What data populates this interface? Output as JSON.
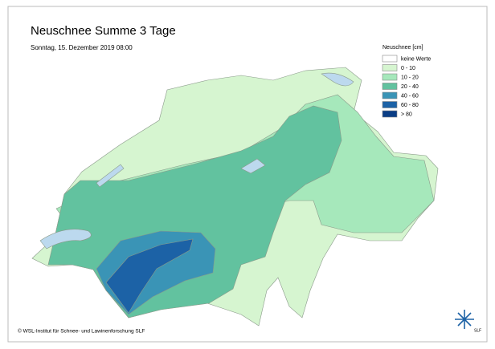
{
  "header": {
    "title": "Neuschnee Summe 3 Tage",
    "subtitle": "Sonntag, 15. Dezember 2019 08:00"
  },
  "legend": {
    "title": "Neuschnee [cm]",
    "items": [
      {
        "label": "keine Werte",
        "color": "#ffffff"
      },
      {
        "label": "0 - 10",
        "color": "#d6f5d0"
      },
      {
        "label": "10 - 20",
        "color": "#a6e8bb"
      },
      {
        "label": "20 - 40",
        "color": "#62c29f"
      },
      {
        "label": "40 - 60",
        "color": "#3a94b6"
      },
      {
        "label": "60 - 80",
        "color": "#1c62a6"
      },
      {
        "label": "> 80",
        "color": "#0a3d85"
      }
    ]
  },
  "footer": {
    "copyright": "© WSL-Institut für Schnee- und Lawinenforschung SLF",
    "logo": "SLF"
  }
}
